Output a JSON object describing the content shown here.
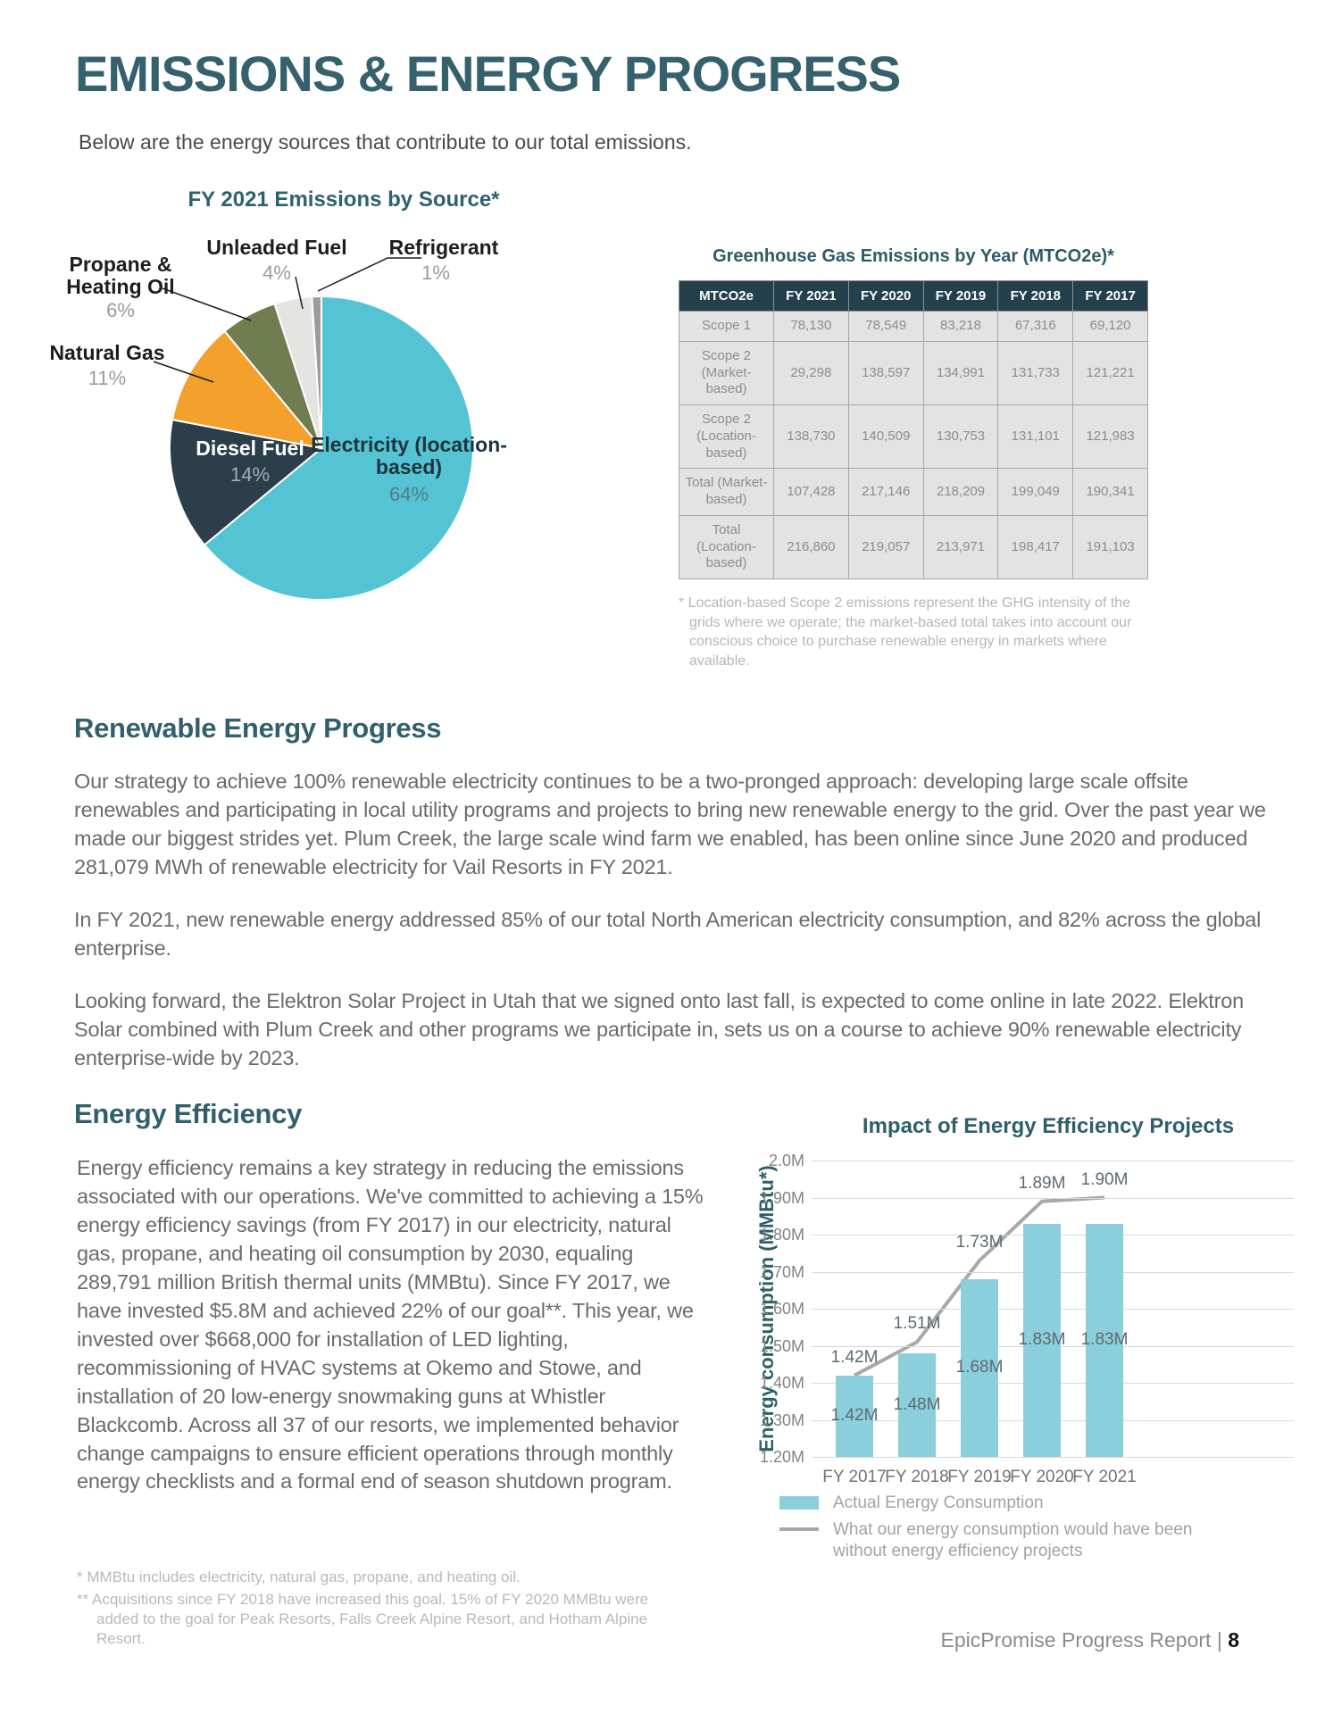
{
  "page": {
    "title": "EMISSIONS & ENERGY PROGRESS",
    "subtitle": "Below are the energy sources that contribute to our total emissions.",
    "footer_text": "EpicPromise Progress Report | ",
    "footer_page": "8"
  },
  "ghg_table": {
    "title": "Greenhouse Gas Emissions by Year (MTCO2e)*",
    "columns": [
      "MTCO2e",
      "FY 2021",
      "FY 2020",
      "FY 2019",
      "FY 2018",
      "FY 2017"
    ],
    "rows": [
      {
        "label": "Scope 1",
        "values": [
          "78,130",
          "78,549",
          "83,218",
          "67,316",
          "69,120"
        ]
      },
      {
        "label": "Scope 2 (Market-based)",
        "values": [
          "29,298",
          "138,597",
          "134,991",
          "131,733",
          "121,221"
        ]
      },
      {
        "label": "Scope 2 (Location-based)",
        "values": [
          "138,730",
          "140,509",
          "130,753",
          "131,101",
          "121,983"
        ]
      },
      {
        "label": "Total (Market-based)",
        "values": [
          "107,428",
          "217,146",
          "218,209",
          "199,049",
          "190,341"
        ]
      },
      {
        "label": "Total (Location-based)",
        "values": [
          "216,860",
          "219,057",
          "213,971",
          "198,417",
          "191,103"
        ]
      }
    ],
    "footnote": "* Location-based Scope 2 emissions represent the GHG intensity of the grids where we operate; the market-based total takes into account our conscious choice to purchase renewable energy in markets where available."
  },
  "renewable": {
    "heading": "Renewable Energy Progress",
    "paragraphs": [
      "Our strategy to achieve 100% renewable electricity continues to be a two-pronged approach: developing large scale offsite renewables and participating in local utility programs and projects to bring new renewable energy to the grid. Over the past year we made our biggest strides yet. Plum Creek, the large scale wind farm we enabled, has been online since June 2020 and produced 281,079 MWh of renewable electricity for Vail Resorts in FY 2021.",
      "In FY 2021, new renewable energy addressed 85% of our total North American electricity consumption, and 82% across the global enterprise.",
      "Looking forward, the Elektron Solar Project in Utah that we signed onto last fall, is expected to come online in late 2022. Elektron Solar combined with Plum Creek and other programs we participate in, sets us on a course to achieve 90% renewable electricity enterprise-wide by 2023."
    ]
  },
  "efficiency": {
    "heading": "Energy Efficiency",
    "body": "Energy efficiency remains a key strategy in reducing the emissions associated with our operations. We've committed to achieving a 15% energy efficiency savings (from FY 2017) in our electricity, natural gas, propane, and heating oil consumption by 2030, equaling 289,791 million British thermal units (MMBtu). Since FY 2017, we have invested $5.8M and achieved 22% of our goal**. This year, we invested over $668,000 for installation of LED lighting, recommissioning of HVAC systems at Okemo and Stowe, and installation of 20 low-energy snowmaking guns at Whistler Blackcomb. Across all 37 of our resorts, we implemented behavior change campaigns to ensure efficient operations through monthly energy checklists and a formal end of season shutdown program.",
    "footnote1": "* MMBtu includes electricity, natural gas, propane, and heating oil.",
    "footnote2": "** Acquisitions since FY 2018 have increased this goal. 15% of FY 2020 MMBtu were added to the goal for Peak Resorts, Falls Creek Alpine Resort, and Hotham Alpine Resort."
  },
  "chart_data": [
    {
      "type": "pie",
      "title": "FY 2021 Emissions by Source*",
      "slices": [
        {
          "label": "Electricity (location-based)",
          "value": 64,
          "pct_label": "64%",
          "color": "#54c4d4"
        },
        {
          "label": "Diesel Fuel",
          "value": 14,
          "pct_label": "14%",
          "color": "#2c3e49"
        },
        {
          "label": "Natural Gas",
          "value": 11,
          "pct_label": "11%",
          "color": "#f4a02c"
        },
        {
          "label": "Propane & Heating Oil",
          "value": 6,
          "pct_label": "6%",
          "color": "#6f7d50"
        },
        {
          "label": "Unleaded Fuel",
          "value": 4,
          "pct_label": "4%",
          "color": "#e4e4e3"
        },
        {
          "label": "Refrigerant",
          "value": 1,
          "pct_label": "1%",
          "color": "#9c9c9c"
        }
      ]
    },
    {
      "type": "bar",
      "title": "Impact of Energy Efficiency Projects",
      "categories": [
        "FY 2017",
        "FY 2018",
        "FY 2019",
        "FY 2020",
        "FY 2021"
      ],
      "series": [
        {
          "name": "Actual Energy Consumption",
          "render": "bar",
          "values": [
            1.42,
            1.48,
            1.68,
            1.83,
            1.83
          ],
          "labels": [
            "1.42M",
            "1.48M",
            "1.68M",
            "1.83M",
            "1.83M"
          ]
        },
        {
          "name": "What our energy consumption would have been without energy efficiency projects",
          "render": "line",
          "values": [
            1.42,
            1.51,
            1.73,
            1.89,
            1.9
          ],
          "labels": [
            "1.42M",
            "1.51M",
            "1.73M",
            "1.89M",
            "1.90M"
          ]
        }
      ],
      "xlabel": "",
      "ylabel": "Energy consumption (MMBtu*)",
      "ylim": [
        1.2,
        2.0
      ],
      "yticks": [
        {
          "v": 2.0,
          "label": "2.0M"
        },
        {
          "v": 1.9,
          "label": "1.90M"
        },
        {
          "v": 1.8,
          "label": "1.80M"
        },
        {
          "v": 1.7,
          "label": "1.70M"
        },
        {
          "v": 1.6,
          "label": "1.60M"
        },
        {
          "v": 1.5,
          "label": "1.50M"
        },
        {
          "v": 1.4,
          "label": "1.40M"
        },
        {
          "v": 1.3,
          "label": "1.30M"
        },
        {
          "v": 1.2,
          "label": "1.20M"
        }
      ],
      "grid": true,
      "legend_position": "bottom",
      "colors": {
        "bar": "#8ccfdc",
        "line": "#a8a8a8"
      }
    }
  ]
}
